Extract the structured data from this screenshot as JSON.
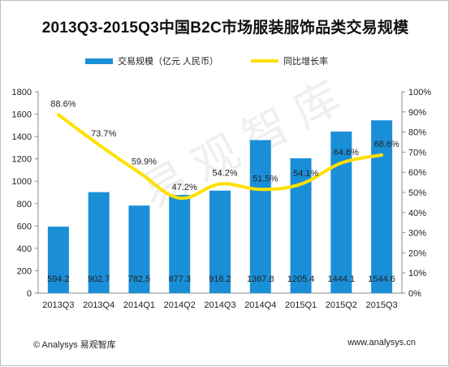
{
  "title": "2013Q3-2015Q3中国B2C市场服装服饰品类交易规模",
  "legend": {
    "bar_label": "交易规模（亿元 人民币）",
    "line_label": "同比增长率"
  },
  "watermark": "易观智库",
  "footer": {
    "left": "© Analysys 易观智库",
    "right": "www.analysys.cn"
  },
  "colors": {
    "bar": "#1a8fd8",
    "line": "#ffe000"
  },
  "chart_data": {
    "type": "bar",
    "title": "2013Q3-2015Q3中国B2C市场服装服饰品类交易规模",
    "categories": [
      "2013Q3",
      "2013Q4",
      "2014Q1",
      "2014Q2",
      "2014Q3",
      "2014Q4",
      "2015Q1",
      "2015Q2",
      "2015Q3"
    ],
    "series": [
      {
        "name": "交易规模（亿元 人民币）",
        "type": "bar",
        "axis": "left",
        "values": [
          594.2,
          902.7,
          782.5,
          877.3,
          916.2,
          1367.8,
          1205.4,
          1444.1,
          1544.6
        ],
        "labels": [
          "594.2",
          "902.7",
          "782.5",
          "877.3",
          "916.2",
          "1367.8",
          "1205.4",
          "1444.1",
          "1544.6"
        ]
      },
      {
        "name": "同比增长率",
        "type": "line",
        "axis": "right",
        "values": [
          88.6,
          73.7,
          59.9,
          47.2,
          54.2,
          51.5,
          54.1,
          64.6,
          68.6
        ],
        "labels": [
          "88.6%",
          "73.7%",
          "59.9%",
          "47.2%",
          "54.2%",
          "51.5%",
          "54.1%",
          "64.6%",
          "68.6%"
        ]
      }
    ],
    "y_left": {
      "ylim": [
        0,
        1800
      ],
      "ticks": [
        "0",
        "200",
        "400",
        "600",
        "800",
        "1000",
        "1200",
        "1400",
        "1600",
        "1800"
      ]
    },
    "y_right": {
      "ylim": [
        0,
        100
      ],
      "ticks": [
        "0%",
        "10%",
        "20%",
        "30%",
        "40%",
        "50%",
        "60%",
        "70%",
        "80%",
        "90%",
        "100%"
      ]
    },
    "grid": false,
    "legend_position": "top"
  }
}
